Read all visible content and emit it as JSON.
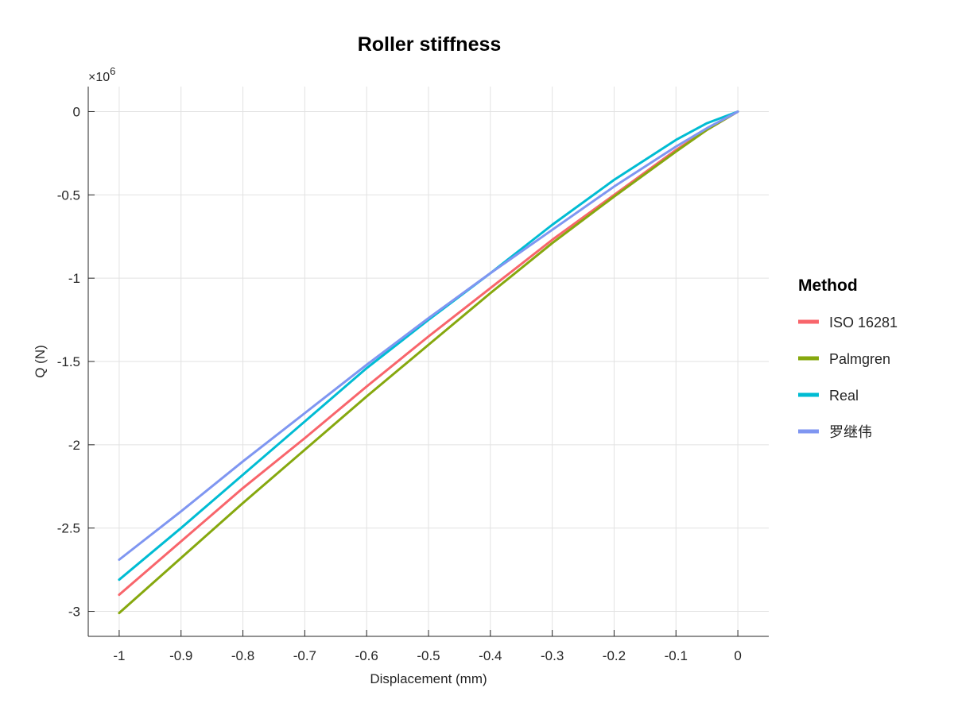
{
  "chart_data": {
    "type": "line",
    "title": "Roller stiffness",
    "xlabel": "Displacement (mm)",
    "ylabel": "Q (N)",
    "y_multiplier_base": "×10",
    "y_multiplier_exponent": "6",
    "xlim": [
      -1.05,
      0.05
    ],
    "ylim": [
      -3.15,
      0.15
    ],
    "x_ticks": [
      -1,
      -0.9,
      -0.8,
      -0.7,
      -0.6,
      -0.5,
      -0.4,
      -0.3,
      -0.2,
      -0.1,
      0
    ],
    "x_tick_labels": [
      "-1",
      "-0.9",
      "-0.8",
      "-0.7",
      "-0.6",
      "-0.5",
      "-0.4",
      "-0.3",
      "-0.2",
      "-0.1",
      "0"
    ],
    "y_ticks": [
      0,
      -0.5,
      -1,
      -1.5,
      -2,
      -2.5,
      -3
    ],
    "y_tick_labels": [
      "0",
      "-0.5",
      "-1",
      "-1.5",
      "-2",
      "-2.5",
      "-3"
    ],
    "grid": true,
    "legend": {
      "title": "Method",
      "placement": "right"
    },
    "x": [
      -1,
      -0.9,
      -0.8,
      -0.7,
      -0.6,
      -0.5,
      -0.4,
      -0.3,
      -0.2,
      -0.1,
      -0.05,
      0
    ],
    "series": [
      {
        "name": "ISO 16281",
        "color": "#F8656B",
        "values": [
          -2.9,
          -2.58,
          -2.26,
          -1.96,
          -1.65,
          -1.35,
          -1.06,
          -0.77,
          -0.5,
          -0.23,
          -0.11,
          0
        ]
      },
      {
        "name": "Palmgren",
        "color": "#86A80E",
        "values": [
          -3.01,
          -2.68,
          -2.35,
          -2.03,
          -1.71,
          -1.4,
          -1.09,
          -0.79,
          -0.51,
          -0.24,
          -0.11,
          0
        ]
      },
      {
        "name": "Real",
        "color": "#00BCD3",
        "values": [
          -2.81,
          -2.5,
          -2.18,
          -1.86,
          -1.54,
          -1.25,
          -0.97,
          -0.68,
          -0.41,
          -0.17,
          -0.07,
          0
        ]
      },
      {
        "name": "罗继伟",
        "color": "#7F96F1",
        "values": [
          -2.69,
          -2.4,
          -2.1,
          -1.81,
          -1.52,
          -1.24,
          -0.97,
          -0.71,
          -0.45,
          -0.21,
          -0.1,
          0
        ]
      }
    ]
  }
}
